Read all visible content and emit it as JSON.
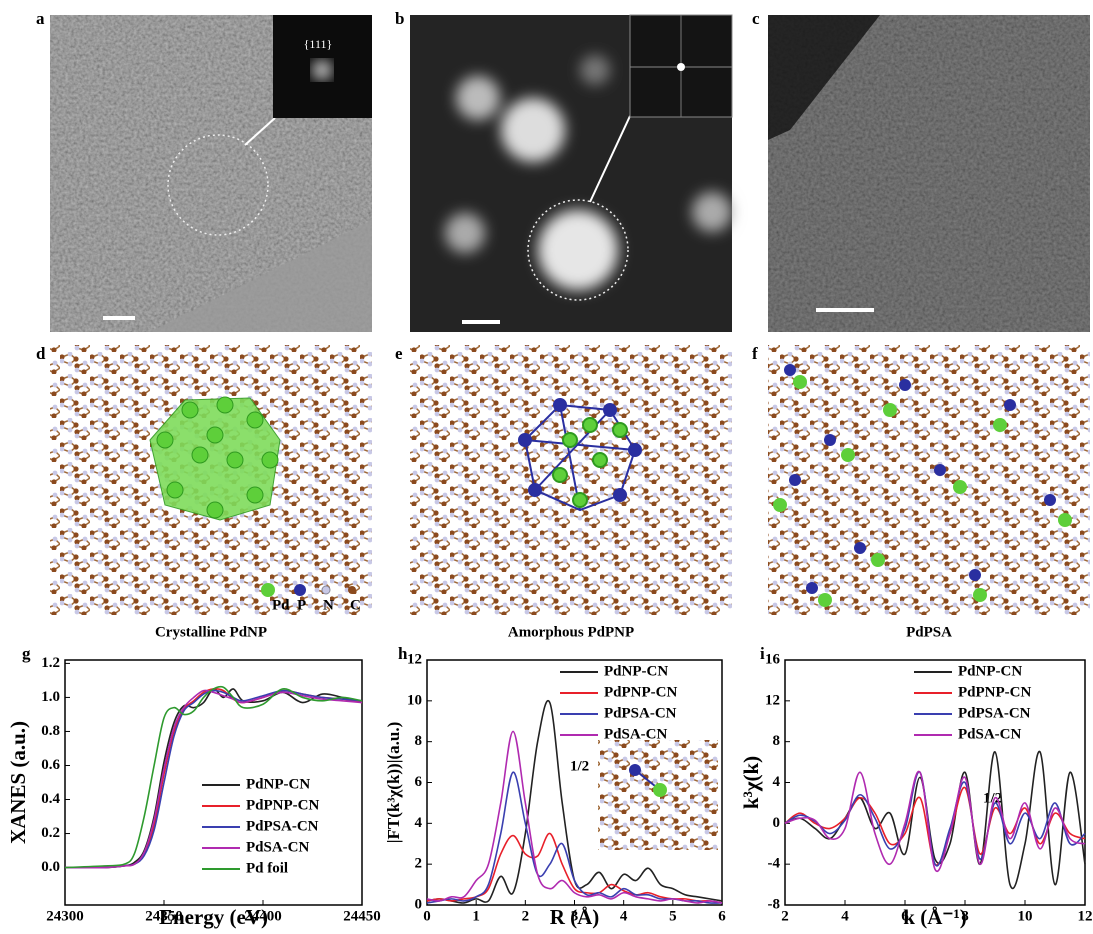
{
  "panels": [
    {
      "label": "a",
      "inset": "{111}"
    },
    {
      "label": "b"
    },
    {
      "label": "c"
    },
    {
      "label": "d",
      "caption": "Crystalline PdNP",
      "legend": [
        "Pd",
        "P",
        "N",
        "C"
      ]
    },
    {
      "label": "e",
      "caption": "Amorphous PdPNP"
    },
    {
      "label": "f",
      "caption": "PdPSA"
    }
  ],
  "chart_data": [
    {
      "type": "line",
      "panel_label": "g",
      "xlabel": "Energy (eV)",
      "ylabel": "XANES (a.u.)",
      "x": [
        24300,
        24320,
        24330,
        24335,
        24340,
        24345,
        24350,
        24355,
        24360,
        24365,
        24370,
        24375,
        24380,
        24385,
        24390,
        24400,
        24410,
        24420,
        24430,
        24440,
        24450
      ],
      "xlim": [
        24300,
        24450
      ],
      "ylim": [
        -0.22,
        1.22
      ],
      "xticks": [
        24300,
        24350,
        24400,
        24450
      ],
      "yticks": [
        {
          "value": 0,
          "label": "0.0"
        },
        0.2,
        0.4,
        0.6,
        0.8,
        {
          "value": 1,
          "label": "1.0"
        },
        1.2
      ],
      "series": [
        {
          "name": "PdNP-CN",
          "color": "#222222",
          "values": [
            0,
            0,
            0.01,
            0.03,
            0.1,
            0.3,
            0.62,
            0.85,
            0.95,
            0.94,
            0.97,
            1.05,
            1.0,
            1.05,
            0.98,
            0.98,
            1.03,
            0.97,
            1.02,
            1.0,
            0.97
          ]
        },
        {
          "name": "PdPNP-CN",
          "color": "#e8202a",
          "values": [
            0,
            0,
            0.01,
            0.02,
            0.08,
            0.25,
            0.55,
            0.8,
            0.93,
            0.98,
            1.03,
            1.05,
            1.04,
            0.99,
            0.97,
            1.0,
            1.04,
            1.02,
            1.0,
            0.99,
            0.97
          ]
        },
        {
          "name": "PdPSA-CN",
          "color": "#3a3fb0",
          "values": [
            0,
            0,
            0.01,
            0.02,
            0.07,
            0.22,
            0.5,
            0.77,
            0.92,
            0.97,
            1.02,
            1.04,
            1.03,
            1.0,
            0.98,
            1.01,
            1.04,
            1.02,
            1.0,
            0.99,
            0.98
          ]
        },
        {
          "name": "PdSA-CN",
          "color": "#b02ab0",
          "values": [
            0,
            0,
            0.01,
            0.02,
            0.09,
            0.28,
            0.58,
            0.82,
            0.94,
            1.0,
            1.04,
            1.03,
            1.01,
            0.99,
            0.97,
            1.0,
            1.03,
            1.01,
            0.99,
            0.98,
            0.97
          ]
        },
        {
          "name": "Pd foil",
          "color": "#2e9a2e",
          "values": [
            0,
            0.01,
            0.02,
            0.08,
            0.3,
            0.6,
            0.88,
            0.94,
            0.9,
            0.92,
            1.0,
            1.05,
            1.06,
            1.0,
            0.94,
            0.96,
            1.05,
            1.0,
            0.98,
            1.0,
            0.98
          ]
        }
      ]
    },
    {
      "type": "line",
      "panel_label": "h",
      "xlabel": "R (Å)",
      "ylabel": "|FT(k³χ(k))|(a.u.)",
      "annotation": "1/2",
      "x": [
        0,
        0.25,
        0.5,
        0.75,
        1,
        1.25,
        1.5,
        1.75,
        2,
        2.25,
        2.5,
        2.75,
        3,
        3.25,
        3.5,
        3.75,
        4,
        4.25,
        4.5,
        4.75,
        5,
        5.25,
        5.5,
        5.75,
        6
      ],
      "xlim": [
        0,
        6
      ],
      "ylim": [
        0,
        12
      ],
      "xticks": [
        0,
        1,
        2,
        3,
        4,
        5,
        6
      ],
      "yticks": [
        0,
        2,
        4,
        6,
        8,
        10,
        12
      ],
      "series": [
        {
          "name": "PdNP-CN",
          "color": "#222222",
          "values": [
            0.2,
            0.3,
            0.2,
            0.1,
            0.3,
            0.2,
            1.4,
            0.6,
            3.5,
            8,
            9.9,
            5,
            1.2,
            1.0,
            1.6,
            0.8,
            1.5,
            1.2,
            1.8,
            1.0,
            0.8,
            0.5,
            0.4,
            0.3,
            0.2
          ]
        },
        {
          "name": "PdPNP-CN",
          "color": "#e8202a",
          "values": [
            0.2,
            0.3,
            0.2,
            0.3,
            0.4,
            0.8,
            2.5,
            3.4,
            2.5,
            2.4,
            3.5,
            2.0,
            0.8,
            0.6,
            0.6,
            1.0,
            0.7,
            0.5,
            0.6,
            0.4,
            0.3,
            0.3,
            0.2,
            0.2,
            0.1
          ]
        },
        {
          "name": "PdPSA-CN",
          "color": "#3a3fb0",
          "values": [
            0.1,
            0.2,
            0.3,
            0.2,
            0.4,
            1.0,
            3.5,
            6.5,
            4.0,
            1.5,
            2.0,
            3.0,
            1.2,
            0.5,
            0.6,
            0.4,
            0.8,
            0.5,
            0.5,
            0.3,
            0.3,
            0.2,
            0.2,
            0.1,
            0.1
          ]
        },
        {
          "name": "PdSA-CN",
          "color": "#b02ab0",
          "values": [
            0.3,
            0.2,
            0.4,
            0.4,
            1.2,
            2.0,
            5.0,
            8.5,
            5.0,
            1.5,
            0.8,
            1.2,
            0.6,
            0.4,
            0.5,
            0.3,
            0.6,
            0.4,
            0.3,
            0.2,
            0.3,
            0.2,
            0.1,
            0.2,
            0.1
          ]
        }
      ]
    },
    {
      "type": "line",
      "panel_label": "i",
      "xlabel": "k (Å⁻¹)",
      "ylabel": "k³χ(k)",
      "annotation": "1/2",
      "x": [
        2,
        2.5,
        3,
        3.5,
        4,
        4.5,
        5,
        5.5,
        6,
        6.5,
        7,
        7.5,
        8,
        8.5,
        9,
        9.5,
        10,
        10.5,
        11,
        11.5,
        12
      ],
      "xlim": [
        2,
        12
      ],
      "ylim": [
        -8,
        16
      ],
      "xticks": [
        2,
        4,
        6,
        8,
        10,
        12
      ],
      "yticks": [
        -8,
        -4,
        0,
        4,
        8,
        12,
        16
      ],
      "series": [
        {
          "name": "PdNP-CN",
          "color": "#222222",
          "values": [
            0,
            0.5,
            -0.5,
            -1.5,
            0.5,
            2.5,
            -0.5,
            1.0,
            -3.0,
            4.5,
            -3.5,
            -2,
            5,
            -4,
            7,
            -6,
            -2,
            7,
            -6,
            5,
            -4
          ]
        },
        {
          "name": "PdPNP-CN",
          "color": "#e8202a",
          "values": [
            0,
            1.0,
            0,
            -0.5,
            0.5,
            2.5,
            1,
            -2,
            -1,
            2.5,
            -4,
            -1,
            3.5,
            -3,
            1.5,
            -1,
            1.5,
            -2,
            1,
            -1,
            -1.5
          ]
        },
        {
          "name": "PdPSA-CN",
          "color": "#3a3fb0",
          "values": [
            0,
            0.8,
            0.2,
            -1,
            0.3,
            2.8,
            0.5,
            -2.5,
            -0.5,
            5,
            -4,
            -0.5,
            4,
            -3.5,
            2,
            -2,
            1,
            -1.5,
            2,
            -2,
            -1
          ]
        },
        {
          "name": "PdSA-CN",
          "color": "#b02ab0",
          "values": [
            0,
            0.5,
            0.3,
            -1.5,
            -0.5,
            5,
            -1,
            -4,
            0,
            5,
            -4.5,
            -1,
            4.5,
            -4,
            2.5,
            -1.5,
            2,
            -2.5,
            1.5,
            -1.5,
            -2
          ]
        }
      ]
    }
  ]
}
